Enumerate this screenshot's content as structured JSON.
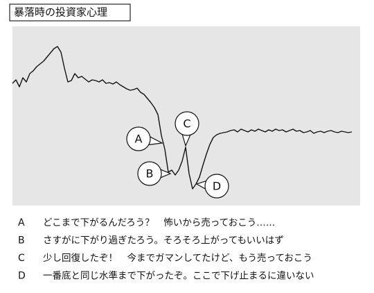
{
  "chart_data": {
    "type": "line",
    "title": "暴落時の投資家心理",
    "ylim": [
      0,
      258
    ],
    "color": "#111111",
    "values": [
      176,
      181,
      171,
      184,
      178,
      190,
      194,
      200,
      204,
      208,
      214,
      220,
      226,
      229,
      221,
      198,
      178,
      180,
      190,
      184,
      186,
      182,
      178,
      181,
      180,
      178,
      181,
      176,
      177,
      175,
      178,
      174,
      171,
      168,
      166,
      167,
      169,
      163,
      160,
      154,
      148,
      141,
      131,
      101,
      81,
      48,
      51,
      44,
      51,
      64,
      84,
      46,
      24,
      31,
      41,
      58,
      74,
      88,
      98,
      102,
      104,
      105,
      106,
      108,
      109,
      106,
      110,
      108,
      106,
      109,
      107,
      110,
      108,
      106,
      109,
      107,
      110,
      108,
      109,
      106,
      108,
      110,
      107,
      108,
      105,
      106,
      108,
      104,
      106,
      107,
      105,
      107,
      108,
      106,
      105,
      107,
      106,
      105,
      106
    ],
    "annotations": [
      {
        "label": "A",
        "text": "どこまで下がるんだろう？　怖いから売っておこう……"
      },
      {
        "label": "B",
        "text": "さすがに下がり過ぎたろう。そろそろ上がってもいいはず"
      },
      {
        "label": "C",
        "text": "少し回復したぞ！　今までガマンしてたけど、もう売っておこう"
      },
      {
        "label": "D",
        "text": "一番底と同じ水準まで下がったぞ。ここで下げ止まるに違いない"
      }
    ]
  }
}
